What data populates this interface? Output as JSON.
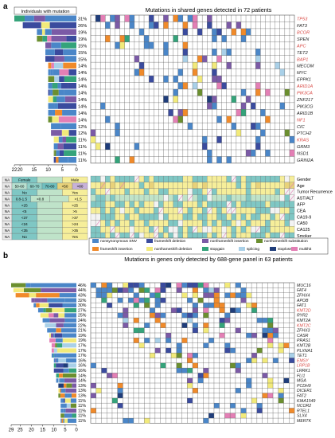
{
  "colors": {
    "nonsynonymous_snv": "#4a86c8",
    "frameshift_deletion": "#3a4b9e",
    "nonframeshift_insertion": "#7b5aa6",
    "nonframeshift_substitution": "#6b8f2f",
    "frameshift_insertion": "#f08a2a",
    "nonframeshift_deletion": "#f2ea7a",
    "stopgain": "#34a37a",
    "splicing": "#a9d0e8",
    "stoploss": "#1f3d7a",
    "multihit": "#e37fb5",
    "tick_yellow": "#f6ee9a",
    "tick_teal": "#7fc7c4",
    "tick_grey": "#c8c8c8",
    "cancer_gene": "#d94a45",
    "grid": "#555555"
  },
  "panel_a": {
    "label": "a",
    "title": "Mutations in shared genes detected in 72 patients",
    "individuals_label": "Individuals with mutation",
    "genes": [
      {
        "name": "TP53",
        "pct": "31%",
        "freq": 22,
        "cancer": true
      },
      {
        "name": "FAT3",
        "pct": "26%",
        "freq": 19,
        "cancer": false
      },
      {
        "name": "BCOR",
        "pct": "19%",
        "freq": 14,
        "cancer": true
      },
      {
        "name": "SPEN",
        "pct": "19%",
        "freq": 14,
        "cancer": false
      },
      {
        "name": "APC",
        "pct": "15%",
        "freq": 11,
        "cancer": true
      },
      {
        "name": "TET2",
        "pct": "15%",
        "freq": 11,
        "cancer": false
      },
      {
        "name": "BAP1",
        "pct": "15%",
        "freq": 11,
        "cancer": true
      },
      {
        "name": "MECOM",
        "pct": "14%",
        "freq": 10,
        "cancer": false
      },
      {
        "name": "MYC",
        "pct": "14%",
        "freq": 10,
        "cancer": false
      },
      {
        "name": "EPPK1",
        "pct": "14%",
        "freq": 10,
        "cancer": false
      },
      {
        "name": "ARID1A",
        "pct": "14%",
        "freq": 10,
        "cancer": true
      },
      {
        "name": "PIK3CA",
        "pct": "14%",
        "freq": 10,
        "cancer": true
      },
      {
        "name": "ZNF217",
        "pct": "14%",
        "freq": 10,
        "cancer": false
      },
      {
        "name": "PIK3CG",
        "pct": "14%",
        "freq": 10,
        "cancer": false
      },
      {
        "name": "ARID1B",
        "pct": "14%",
        "freq": 10,
        "cancer": false
      },
      {
        "name": "NF1",
        "pct": "14%",
        "freq": 10,
        "cancer": true
      },
      {
        "name": "CIC",
        "pct": "12%",
        "freq": 9,
        "cancer": false
      },
      {
        "name": "PTCH2",
        "pct": "12%",
        "freq": 9,
        "cancer": false
      },
      {
        "name": "KRAS",
        "pct": "11%",
        "freq": 8,
        "cancer": true
      },
      {
        "name": "GRM3",
        "pct": "11%",
        "freq": 8,
        "cancer": false
      },
      {
        "name": "NSD1",
        "pct": "11%",
        "freq": 8,
        "cancer": false
      },
      {
        "name": "GRIN2A",
        "pct": "11%",
        "freq": 8,
        "cancer": false
      }
    ],
    "bar_axis_ticks": [
      "22",
      "20",
      "15",
      "10",
      "5",
      "0"
    ],
    "bar_axis_max": 22,
    "clinical_tracks": [
      "Gender",
      "Age",
      "Tumor Recurrence",
      "AST/ALT",
      "AFP",
      "CEA",
      "CA19-9",
      "CA50",
      "CA125",
      "Smoker"
    ],
    "legend_table": {
      "header": [
        "",
        "Female",
        "",
        "Male"
      ],
      "rows": [
        [
          "NA",
          "Female",
          "",
          "Male"
        ],
        [
          "NA",
          "50-60",
          "60-70",
          "70-80",
          "<50",
          ">80"
        ],
        [
          "NA",
          "No",
          "",
          "Yes"
        ],
        [
          "NA",
          "0.8-1.5",
          "<0.8",
          "",
          ">1.5"
        ],
        [
          "NA",
          "<25",
          "",
          ">25"
        ],
        [
          "NA",
          "<5",
          "",
          ">5"
        ],
        [
          "NA",
          "<37",
          "",
          ">37"
        ],
        [
          "NA",
          "<24",
          "",
          ">24"
        ],
        [
          "NA",
          "<35",
          "",
          ">35"
        ],
        [
          "NA",
          "No",
          "",
          "Yes"
        ]
      ]
    },
    "mutation_legend": [
      {
        "key": "nonsynonymous_snv",
        "label": "nonsynonymous SNV"
      },
      {
        "key": "frameshift_deletion",
        "label": "frameshift deletion"
      },
      {
        "key": "nonframeshift_insertion",
        "label": "nonframeshift insertion"
      },
      {
        "key": "nonframeshift_substitution",
        "label": "nonframeshift substitution"
      },
      {
        "key": "frameshift_insertion",
        "label": "frameshift insertion"
      },
      {
        "key": "nonframeshift_deletion",
        "label": "nonframeshift deletion"
      },
      {
        "key": "stopgain",
        "label": "stopgain"
      },
      {
        "key": "splicing",
        "label": "splicing"
      },
      {
        "key": "stoploss",
        "label": "stoploss"
      },
      {
        "key": "multihit",
        "label": "multihit"
      }
    ]
  },
  "panel_b": {
    "label": "b",
    "title": "Mutations in genes only detected by 688-gene panel in 63 patients",
    "genes": [
      {
        "name": "MUC16",
        "pct": "46%",
        "freq": 29,
        "cancer": false
      },
      {
        "name": "FAT4",
        "pct": "44%",
        "freq": 28,
        "cancer": false
      },
      {
        "name": "ZFHX4",
        "pct": "43%",
        "freq": 27,
        "cancer": false
      },
      {
        "name": "APOB",
        "pct": "32%",
        "freq": 20,
        "cancer": false
      },
      {
        "name": "FAT1",
        "pct": "30%",
        "freq": 19,
        "cancer": false
      },
      {
        "name": "KMT2D",
        "pct": "27%",
        "freq": 17,
        "cancer": true
      },
      {
        "name": "RYR2",
        "pct": "25%",
        "freq": 16,
        "cancer": false
      },
      {
        "name": "KMT2A",
        "pct": "24%",
        "freq": 15,
        "cancer": false
      },
      {
        "name": "KMT2C",
        "pct": "22%",
        "freq": 14,
        "cancer": true
      },
      {
        "name": "ZFHX3",
        "pct": "21%",
        "freq": 13,
        "cancer": false
      },
      {
        "name": "CASR",
        "pct": "19%",
        "freq": 12,
        "cancer": false
      },
      {
        "name": "PRAS1",
        "pct": "19%",
        "freq": 12,
        "cancer": false
      },
      {
        "name": "KMT2B",
        "pct": "17%",
        "freq": 11,
        "cancer": false
      },
      {
        "name": "PLXNA1",
        "pct": "17%",
        "freq": 11,
        "cancer": false
      },
      {
        "name": "TET1",
        "pct": "17%",
        "freq": 11,
        "cancer": false
      },
      {
        "name": "EMSY",
        "pct": "16%",
        "freq": 10,
        "cancer": true
      },
      {
        "name": "LRP1B",
        "pct": "16%",
        "freq": 10,
        "cancer": true
      },
      {
        "name": "LRRK1",
        "pct": "16%",
        "freq": 10,
        "cancer": false
      },
      {
        "name": "FLI1",
        "pct": "14%",
        "freq": 9,
        "cancer": false
      },
      {
        "name": "MGA",
        "pct": "14%",
        "freq": 9,
        "cancer": false
      },
      {
        "name": "PCDH9",
        "pct": "13%",
        "freq": 8,
        "cancer": false
      },
      {
        "name": "DICER1",
        "pct": "13%",
        "freq": 8,
        "cancer": false
      },
      {
        "name": "FAT2",
        "pct": "13%",
        "freq": 8,
        "cancer": false
      },
      {
        "name": "KIAA1549",
        "pct": "11%",
        "freq": 7,
        "cancer": false
      },
      {
        "name": "NCOR2",
        "pct": "11%",
        "freq": 7,
        "cancer": false
      },
      {
        "name": "RTEL1",
        "pct": "11%",
        "freq": 7,
        "cancer": false
      },
      {
        "name": "SLX4",
        "pct": "11%",
        "freq": 7,
        "cancer": false
      },
      {
        "name": "MERTK",
        "pct": "11%",
        "freq": 7,
        "cancer": false
      }
    ],
    "bar_axis_ticks": [
      "29",
      "25",
      "20",
      "15",
      "10",
      "5",
      "0"
    ],
    "bar_axis_max": 29
  },
  "chart_data": [
    {
      "type": "heatmap",
      "title": "Mutations in shared genes detected in 72 patients",
      "xlabel": "",
      "ylabel": "",
      "categories": [
        "TP53",
        "FAT3",
        "BCOR",
        "SPEN",
        "APC",
        "TET2",
        "BAP1",
        "MECOM",
        "MYC",
        "EPPK1",
        "ARID1A",
        "PIK3CA",
        "ZNF217",
        "PIK3CG",
        "ARID1B",
        "NF1",
        "CIC",
        "PTCH2",
        "KRAS",
        "GRM3",
        "NSD1",
        "GRIN2A"
      ],
      "series": [
        {
          "values": [
            22,
            19,
            14,
            14,
            11,
            11,
            11,
            10,
            10,
            10,
            10,
            10,
            10,
            10,
            10,
            10,
            9,
            9,
            8,
            8,
            8,
            8
          ]
        }
      ],
      "percent_labels": [
        "31%",
        "26%",
        "19%",
        "19%",
        "15%",
        "15%",
        "15%",
        "14%",
        "14%",
        "14%",
        "14%",
        "14%",
        "14%",
        "14%",
        "14%",
        "14%",
        "12%",
        "12%",
        "11%",
        "11%",
        "11%",
        "11%"
      ],
      "xlim": [
        22,
        0
      ]
    },
    {
      "type": "heatmap",
      "title": "Mutations in genes only detected by 688-gene panel in 63 patients",
      "xlabel": "",
      "ylabel": "",
      "categories": [
        "MUC16",
        "FAT4",
        "ZFHX4",
        "APOB",
        "FAT1",
        "KMT2D",
        "RYR2",
        "KMT2A",
        "KMT2C",
        "ZFHX3",
        "CASR",
        "PRAS1",
        "KMT2B",
        "PLXNA1",
        "TET1",
        "EMSY",
        "LRP1B",
        "LRRK1",
        "FLI1",
        "MGA",
        "PCDH9",
        "DICER1",
        "FAT2",
        "KIAA1549",
        "NCOR2",
        "RTEL1",
        "SLX4",
        "MERTK"
      ],
      "series": [
        {
          "values": [
            29,
            28,
            27,
            20,
            19,
            17,
            16,
            15,
            14,
            13,
            12,
            12,
            11,
            11,
            11,
            10,
            10,
            10,
            9,
            9,
            8,
            8,
            8,
            7,
            7,
            7,
            7,
            7
          ]
        }
      ],
      "percent_labels": [
        "46%",
        "44%",
        "43%",
        "32%",
        "30%",
        "27%",
        "25%",
        "24%",
        "22%",
        "21%",
        "19%",
        "19%",
        "17%",
        "17%",
        "17%",
        "16%",
        "16%",
        "16%",
        "14%",
        "14%",
        "13%",
        "13%",
        "13%",
        "11%",
        "11%",
        "11%",
        "11%",
        "11%"
      ],
      "xlim": [
        29,
        0
      ]
    }
  ]
}
